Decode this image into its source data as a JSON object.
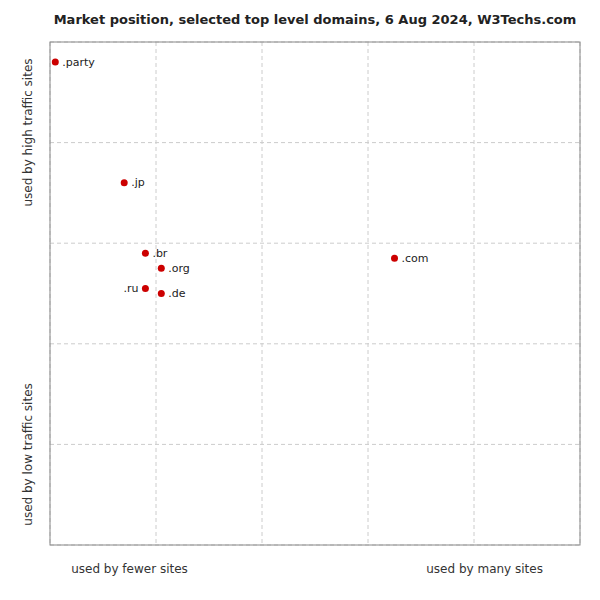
{
  "chart_data": {
    "type": "scatter",
    "title": "Market position, selected top level domains, 6 Aug 2024, W3Techs.com",
    "xlabel_left": "used by fewer sites",
    "xlabel_right": "used by many sites",
    "ylabel_top": "used by high traffic sites",
    "ylabel_bottom": "used by low traffic sites",
    "labels": [
      ".party",
      ".jp",
      ".br",
      ".org",
      ".ru",
      ".de",
      ".com"
    ],
    "x": [
      1,
      14,
      18,
      21,
      18,
      21,
      65
    ],
    "values": [
      96,
      72,
      58,
      55,
      51,
      50,
      57
    ],
    "color": "#cc0000",
    "xlim": [
      0,
      100
    ],
    "ylim": [
      0,
      100
    ],
    "xticks": [
      0,
      20,
      40,
      60,
      80,
      100
    ],
    "yticks": [
      0,
      20,
      40,
      60,
      80,
      100
    ],
    "grid": true,
    "tick_labels": false
  }
}
